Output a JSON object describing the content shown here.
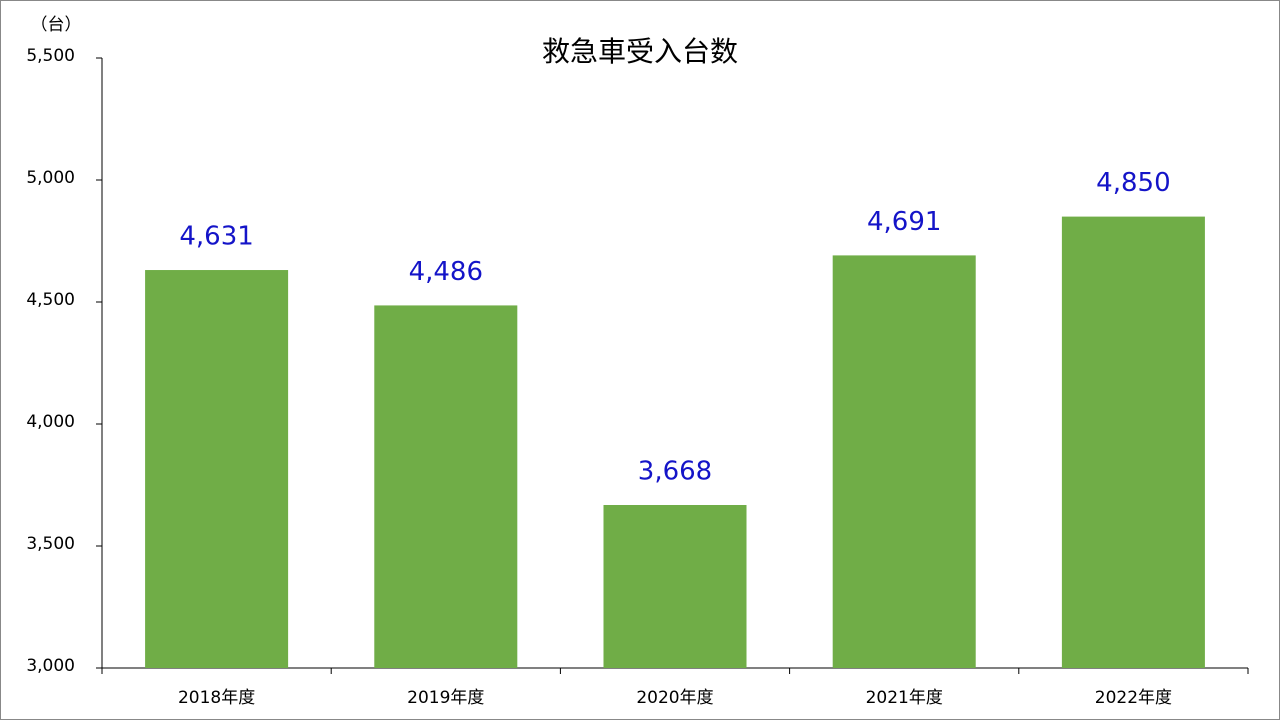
{
  "chart_data": {
    "type": "bar",
    "title": "救急車受入台数",
    "y_axis_label": "（台）",
    "categories": [
      "2018年度",
      "2019年度",
      "2020年度",
      "2021年度",
      "2022年度"
    ],
    "values": [
      4631,
      4486,
      3668,
      4691,
      4850
    ],
    "value_labels": [
      "4,631",
      "4,486",
      "3,668",
      "4,691",
      "4,850"
    ],
    "color": "#70ad47",
    "value_label_color": "#1414c8",
    "ylim": [
      3000,
      5500
    ],
    "yticks": [
      {
        "value": 3000,
        "label": "3,000"
      },
      {
        "value": 3500,
        "label": "3,500"
      },
      {
        "value": 4000,
        "label": "4,000"
      },
      {
        "value": 4500,
        "label": "4,500"
      },
      {
        "value": 5000,
        "label": "5,000"
      },
      {
        "value": 5500,
        "label": "5,500"
      }
    ],
    "grid": false
  }
}
